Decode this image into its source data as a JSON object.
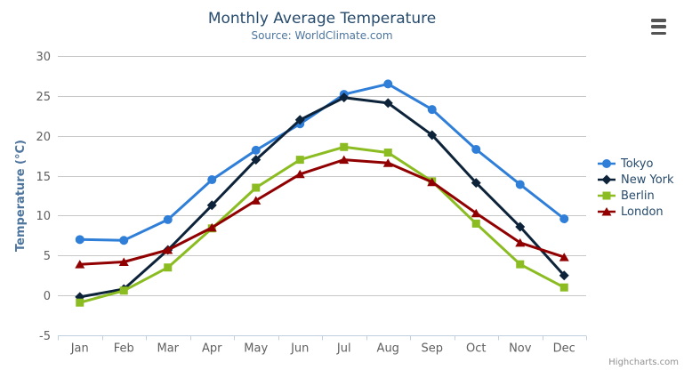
{
  "chart_data": {
    "type": "line",
    "title": "Monthly Average Temperature",
    "subtitle": "Source: WorldClimate.com",
    "xlabel": "",
    "ylabel": "Temperature (°C)",
    "ylim": [
      -5,
      30
    ],
    "yticks": [
      -5,
      0,
      5,
      10,
      15,
      20,
      25,
      30
    ],
    "grid": true,
    "legend_position": "right",
    "categories": [
      "Jan",
      "Feb",
      "Mar",
      "Apr",
      "May",
      "Jun",
      "Jul",
      "Aug",
      "Sep",
      "Oct",
      "Nov",
      "Dec"
    ],
    "series": [
      {
        "name": "Tokyo",
        "color": "#2f7ed8",
        "marker": "circle",
        "values": [
          7.0,
          6.9,
          9.5,
          14.5,
          18.2,
          21.5,
          25.2,
          26.5,
          23.3,
          18.3,
          13.9,
          9.6
        ]
      },
      {
        "name": "New York",
        "color": "#0d233a",
        "marker": "diamond",
        "values": [
          -0.2,
          0.8,
          5.7,
          11.3,
          17.0,
          22.0,
          24.8,
          24.1,
          20.1,
          14.1,
          8.6,
          2.5
        ]
      },
      {
        "name": "Berlin",
        "color": "#8bbc21",
        "marker": "square",
        "values": [
          -0.9,
          0.6,
          3.5,
          8.4,
          13.5,
          17.0,
          18.6,
          17.9,
          14.3,
          9.0,
          3.9,
          1.0
        ]
      },
      {
        "name": "London",
        "color": "#910000",
        "marker": "triangle",
        "values": [
          3.9,
          4.2,
          5.7,
          8.5,
          11.9,
          15.2,
          17.0,
          16.6,
          14.2,
          10.3,
          6.6,
          4.8
        ]
      }
    ]
  },
  "header": {
    "menu_icon": "hamburger"
  },
  "credits": {
    "label": "Highcharts.com"
  },
  "colors": {
    "title": "#274b6d",
    "subtitle": "#4d759e",
    "axis_title": "#4d759e",
    "axis_labels": "#606060",
    "gridline": "#c8c8c8",
    "axis_line": "#c0d0e0",
    "legend_text": "#274b6d",
    "menu_icon": "#545454",
    "credits_text": "#909090",
    "background": "#ffffff"
  }
}
